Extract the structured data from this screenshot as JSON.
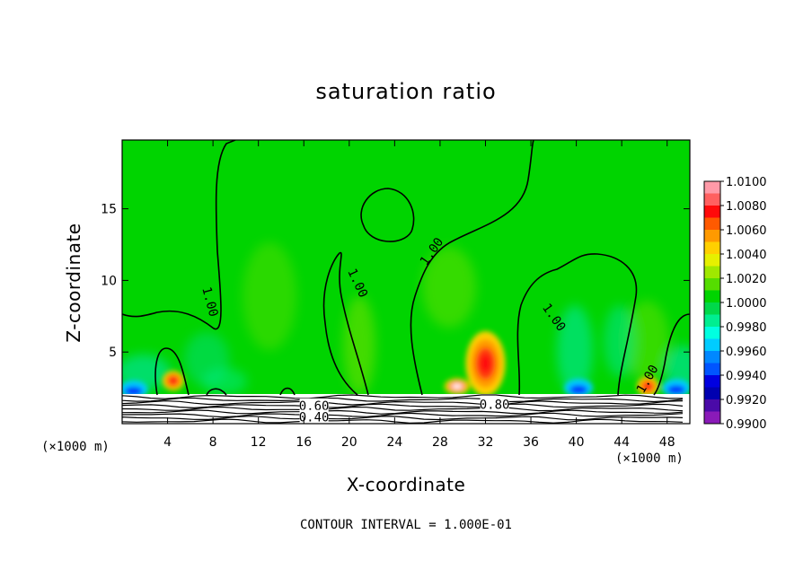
{
  "chart_data": {
    "type": "heatmap",
    "title": "saturation ratio",
    "xlabel": "X-coordinate",
    "ylabel": "Z-coordinate",
    "x_unit": "(×1000 m)",
    "x_range": [
      0,
      50
    ],
    "y_range": [
      0,
      19.8
    ],
    "x_ticks": [
      4,
      8,
      12,
      16,
      20,
      24,
      28,
      32,
      36,
      40,
      44,
      48
    ],
    "y_ticks": [
      5,
      10,
      15
    ],
    "footer": "CONTOUR INTERVAL = 1.000E-01",
    "colorbar": {
      "levels": [
        "1.0100",
        "1.0080",
        "1.0060",
        "1.0040",
        "1.0020",
        "1.0000",
        "0.9980",
        "0.9960",
        "0.9940",
        "0.9920",
        "0.9900"
      ],
      "colors": [
        "#ff9aa8",
        "#ff6060",
        "#ff0a0a",
        "#ff5a00",
        "#ff9a00",
        "#ffd000",
        "#e6f000",
        "#a0e800",
        "#55dd00",
        "#00d400",
        "#00d84a",
        "#00ee90",
        "#00ffe0",
        "#00ccff",
        "#0088ff",
        "#0055ff",
        "#0000e0",
        "#0000b0",
        "#4a0aa8",
        "#8a1ab8"
      ]
    },
    "background_level": "1.0000",
    "contour_labels": [
      {
        "text": "1.00",
        "x": 7.7,
        "z": 8.5
      },
      {
        "text": "1.00",
        "x": 20.7,
        "z": 9.8
      },
      {
        "text": "1.00",
        "x": 27.3,
        "z": 12.0
      },
      {
        "text": "1.00",
        "x": 38.0,
        "z": 7.4
      },
      {
        "text": "1.00",
        "x": 46.3,
        "z": 3.1
      },
      {
        "text": "0.80",
        "x": 32.8,
        "z": 1.3
      },
      {
        "text": "0.60",
        "x": 16.9,
        "z": 1.2
      },
      {
        "text": "0.40",
        "x": 16.9,
        "z": 0.4
      }
    ],
    "features": [
      {
        "x": 4.5,
        "z": 3.0,
        "level": "1.0060",
        "kind": "warm"
      },
      {
        "x": 32.0,
        "z": 4.2,
        "level": "1.0080",
        "kind": "warm"
      },
      {
        "x": 29.5,
        "z": 2.6,
        "level": "1.0100",
        "kind": "warm"
      },
      {
        "x": 46.3,
        "z": 2.6,
        "level": "1.0060",
        "kind": "warm"
      },
      {
        "x": 1.0,
        "z": 2.4,
        "level": "0.9940",
        "kind": "cool"
      },
      {
        "x": 40.2,
        "z": 2.5,
        "level": "0.9940",
        "kind": "cool"
      },
      {
        "x": 48.8,
        "z": 2.5,
        "level": "0.9940",
        "kind": "cool"
      }
    ]
  }
}
